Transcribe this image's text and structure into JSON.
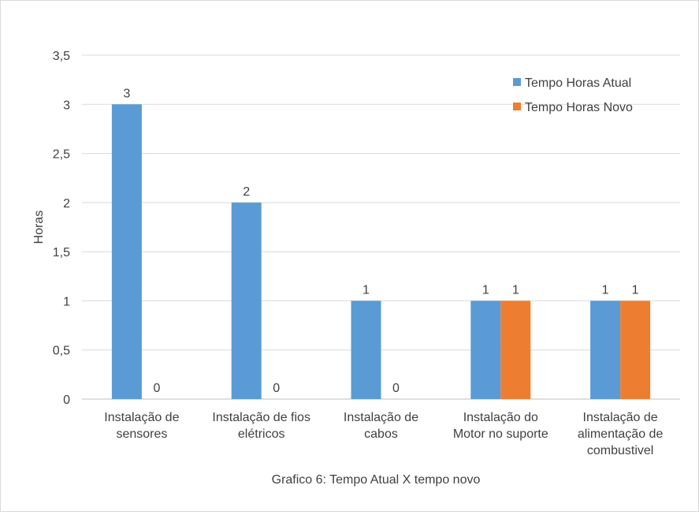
{
  "chart_data": {
    "type": "bar",
    "title": "",
    "caption": "Grafico 6: Tempo Atual X tempo novo",
    "xlabel": "",
    "ylabel": "Horas",
    "ylim": [
      0,
      3.5
    ],
    "yticks": [
      "0",
      "0,5",
      "1",
      "1,5",
      "2",
      "2,5",
      "3",
      "3,5"
    ],
    "categories": [
      [
        "Instalação de",
        "sensores"
      ],
      [
        "Instalação de fios",
        "elétricos"
      ],
      [
        "Instalação de",
        "cabos"
      ],
      [
        "Instalação do",
        "Motor no suporte"
      ],
      [
        "Instalação de",
        "alimentação de",
        "combustivel"
      ]
    ],
    "series": [
      {
        "name": "Tempo Horas Atual",
        "color": "#5b9bd5",
        "values": [
          3,
          2,
          1,
          1,
          1
        ]
      },
      {
        "name": "Tempo Horas Novo",
        "color": "#ed7d31",
        "values": [
          0,
          0,
          0,
          1,
          1
        ]
      }
    ],
    "grid": true,
    "legend_position": "top-right"
  }
}
